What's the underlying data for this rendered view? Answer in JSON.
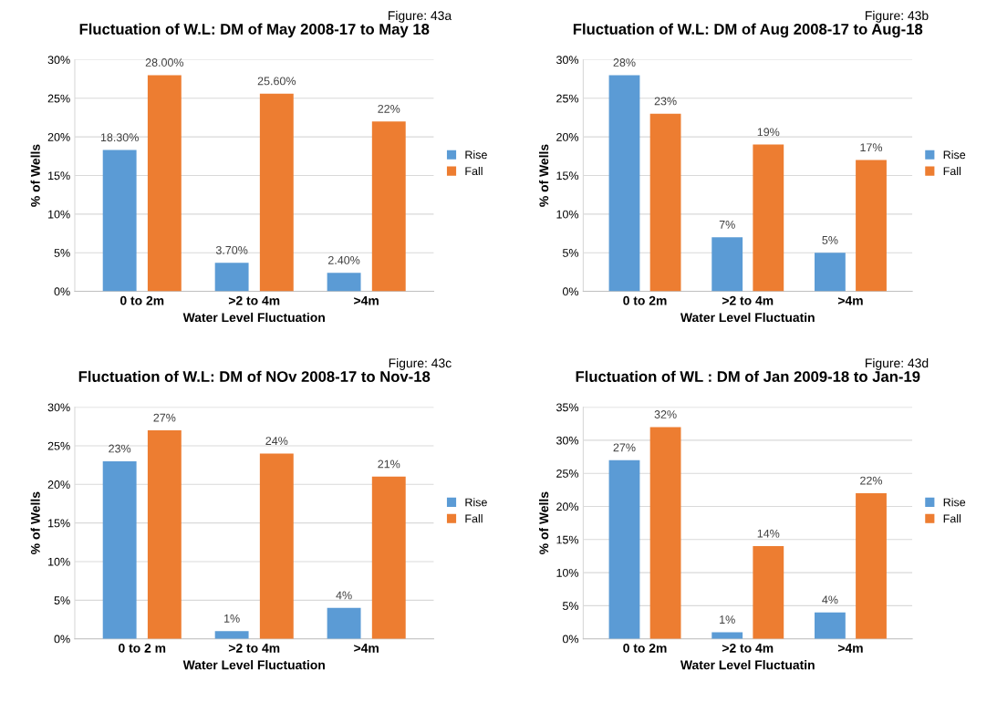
{
  "chart_data": [
    {
      "type": "bar",
      "title": "Fluctuation of W.L: DM of May 2008-17 to May 18",
      "xlabel": "Water Level Fluctuation",
      "ylabel": "% of Wells",
      "annotations": [
        "Figure: 43a"
      ],
      "categories": [
        "0 to 2m",
        ">2 to 4m",
        ">4m"
      ],
      "series": [
        {
          "name": "Rise",
          "color": "#5b9bd5",
          "values": [
            18.3,
            3.7,
            2.4
          ],
          "value_labels": [
            "18.30%",
            "3.70%",
            "2.40%"
          ]
        },
        {
          "name": "Fall",
          "color": "#ed7d31",
          "values": [
            28,
            25.6,
            22
          ],
          "value_labels": [
            "28.00%",
            "25.60%",
            "22%"
          ]
        }
      ],
      "ylim": [
        0,
        30
      ],
      "yticks": [
        {
          "value": 0,
          "label": "0%"
        },
        {
          "value": 5,
          "label": "5%"
        },
        {
          "value": 10,
          "label": "10%"
        },
        {
          "value": 15,
          "label": "15%"
        },
        {
          "value": 20,
          "label": "20%"
        },
        {
          "value": 25,
          "label": "25%"
        },
        {
          "value": 30,
          "label": "30%"
        }
      ],
      "grid": "y",
      "legend": "right"
    },
    {
      "type": "bar",
      "title": "Fluctuation of W.L: DM of Aug 2008-17 to Aug-18",
      "xlabel": "Water Level Fluctuatin",
      "ylabel": "% of Wells",
      "annotations": [
        "Figure: 43b"
      ],
      "categories": [
        "0 to 2m",
        ">2 to 4m",
        ">4m"
      ],
      "series": [
        {
          "name": "Rise",
          "color": "#5b9bd5",
          "values": [
            28,
            7,
            5
          ],
          "value_labels": [
            "28%",
            "7%",
            "5%"
          ]
        },
        {
          "name": "Fall",
          "color": "#ed7d31",
          "values": [
            23,
            19,
            17
          ],
          "value_labels": [
            "23%",
            "19%",
            "17%"
          ]
        }
      ],
      "ylim": [
        0,
        30
      ],
      "yticks": [
        {
          "value": 0,
          "label": "0%"
        },
        {
          "value": 5,
          "label": "5%"
        },
        {
          "value": 10,
          "label": "10%"
        },
        {
          "value": 15,
          "label": "15%"
        },
        {
          "value": 20,
          "label": "20%"
        },
        {
          "value": 25,
          "label": "25%"
        },
        {
          "value": 30,
          "label": "30%"
        }
      ],
      "grid": "y",
      "legend": "right"
    },
    {
      "type": "bar",
      "title": "Fluctuation of W.L: DM of NOv 2008-17 to Nov-18",
      "xlabel": "Water Level Fluctuation",
      "ylabel": "% of Wells",
      "annotations": [
        "Figure: 43c"
      ],
      "categories": [
        "0 to 2 m",
        ">2 to 4m",
        ">4m"
      ],
      "series": [
        {
          "name": "Rise",
          "color": "#5b9bd5",
          "values": [
            23,
            1,
            4
          ],
          "value_labels": [
            "23%",
            "1%",
            "4%"
          ]
        },
        {
          "name": "Fall",
          "color": "#ed7d31",
          "values": [
            27,
            24,
            21
          ],
          "value_labels": [
            "27%",
            "24%",
            "21%"
          ]
        }
      ],
      "ylim": [
        0,
        30
      ],
      "yticks": [
        {
          "value": 0,
          "label": "0%"
        },
        {
          "value": 5,
          "label": "5%"
        },
        {
          "value": 10,
          "label": "10%"
        },
        {
          "value": 15,
          "label": "15%"
        },
        {
          "value": 20,
          "label": "20%"
        },
        {
          "value": 25,
          "label": "25%"
        },
        {
          "value": 30,
          "label": "30%"
        }
      ],
      "grid": "y",
      "legend": "right"
    },
    {
      "type": "bar",
      "title": "Fluctuation of WL : DM of Jan 2009-18 to Jan-19",
      "xlabel": "Water Level Fluctuatin",
      "ylabel": "% of Wells",
      "annotations": [
        "Figure: 43d"
      ],
      "categories": [
        "0 to 2m",
        ">2 to 4m",
        ">4m"
      ],
      "series": [
        {
          "name": "Rise",
          "color": "#5b9bd5",
          "values": [
            27,
            1,
            4
          ],
          "value_labels": [
            "27%",
            "1%",
            "4%"
          ]
        },
        {
          "name": "Fall",
          "color": "#ed7d31",
          "values": [
            32,
            14,
            22
          ],
          "value_labels": [
            "32%",
            "14%",
            "22%"
          ]
        }
      ],
      "ylim": [
        0,
        35
      ],
      "yticks": [
        {
          "value": 0,
          "label": "0%"
        },
        {
          "value": 5,
          "label": "5%"
        },
        {
          "value": 10,
          "label": "10%"
        },
        {
          "value": 15,
          "label": "15%"
        },
        {
          "value": 20,
          "label": "20%"
        },
        {
          "value": 25,
          "label": "25%"
        },
        {
          "value": 30,
          "label": "30%"
        },
        {
          "value": 35,
          "label": "35%"
        }
      ],
      "grid": "y",
      "legend": "right"
    }
  ]
}
